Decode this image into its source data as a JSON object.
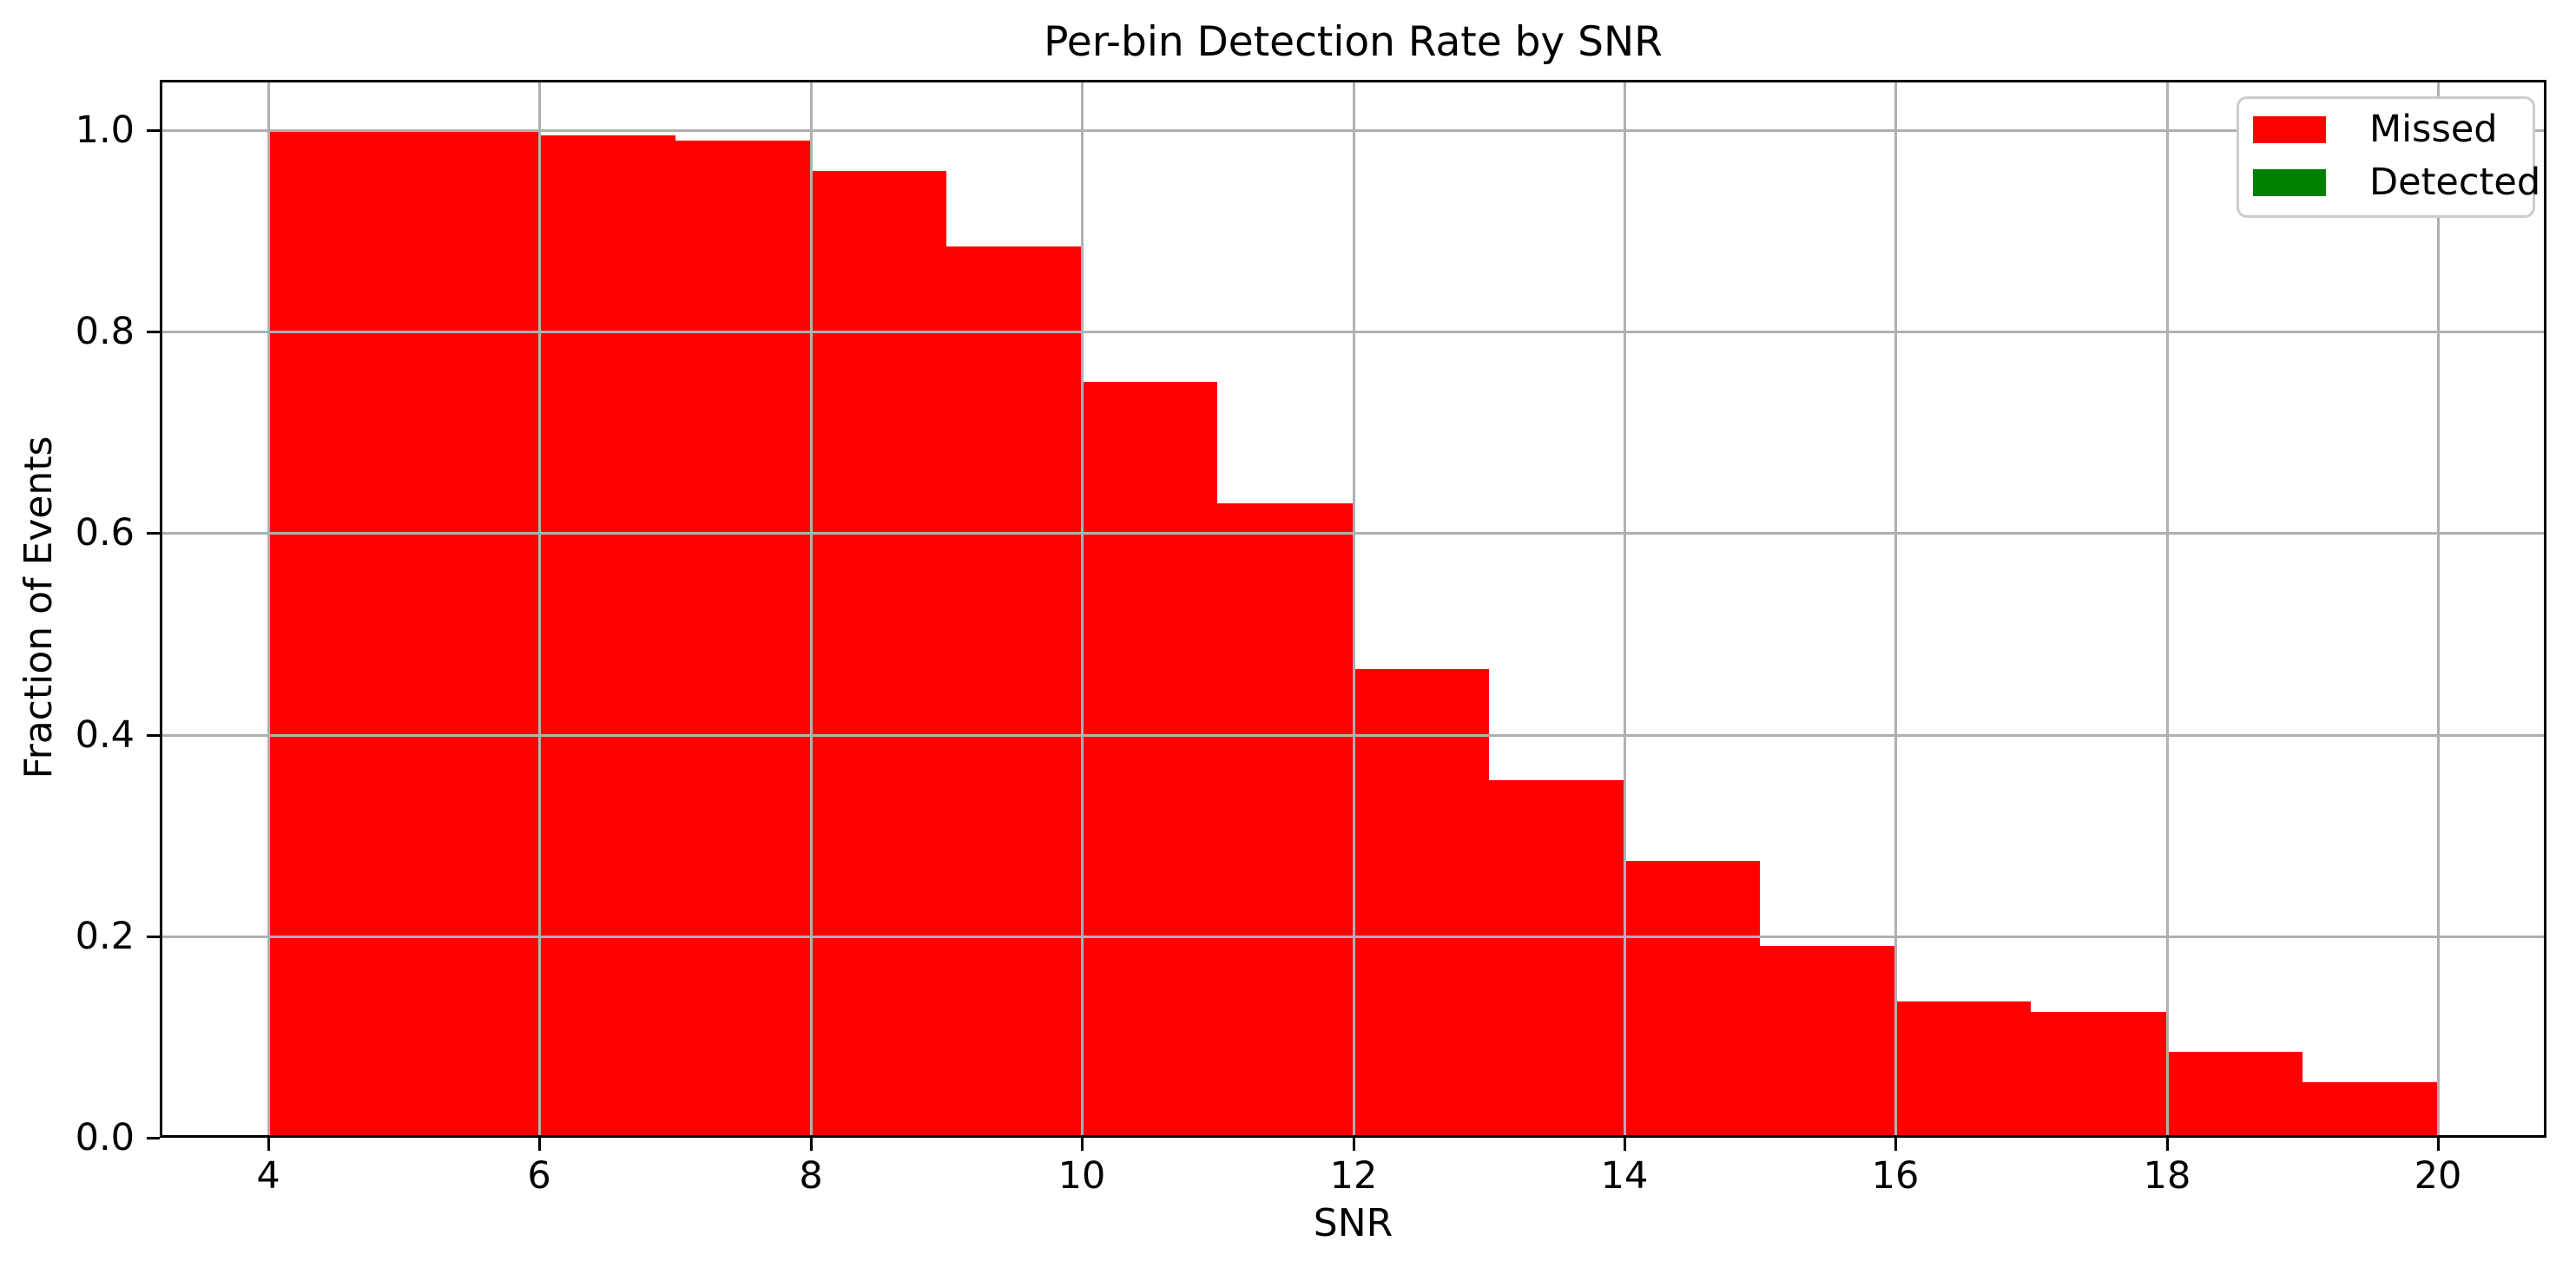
{
  "figure": {
    "background": "#ffffff"
  },
  "chart_data": {
    "type": "bar",
    "subtype": "stacked_histogram",
    "title": "Per-bin Detection Rate by SNR",
    "xlabel": "SNR",
    "ylabel": "Fraction of Events",
    "xlim": [
      3.2,
      20.8
    ],
    "ylim": [
      0,
      1.05
    ],
    "grid": true,
    "grid_above_bars": true,
    "legend_position": "upper right",
    "bin_edges": [
      4,
      5,
      6,
      7,
      8,
      9,
      10,
      11,
      12,
      13,
      14,
      15,
      16,
      17,
      18,
      19,
      20
    ],
    "x_ticks": [
      4,
      6,
      8,
      10,
      12,
      14,
      16,
      18,
      20
    ],
    "x_tick_labels": [
      "4",
      "6",
      "8",
      "10",
      "12",
      "14",
      "16",
      "18",
      "20"
    ],
    "y_ticks": [
      0.0,
      0.2,
      0.4,
      0.6,
      0.8,
      1.0
    ],
    "y_tick_labels": [
      "0.0",
      "0.2",
      "0.4",
      "0.6",
      "0.8",
      "1.0"
    ],
    "series": [
      {
        "name": "Missed",
        "color": "#ff0000",
        "values": [
          1.0,
          1.0,
          0.995,
          0.99,
          0.96,
          0.885,
          0.75,
          0.63,
          0.465,
          0.355,
          0.275,
          0.19,
          0.135,
          0.125,
          0.085,
          0.055
        ]
      },
      {
        "name": "Detected",
        "color": "#008000",
        "values": [
          0,
          0,
          0,
          0,
          0,
          0,
          0,
          0,
          0,
          0,
          0,
          0,
          0,
          0,
          0,
          0
        ]
      }
    ]
  },
  "colors": {
    "grid": "#b0b0b0",
    "axis": "#000000",
    "text": "#000000",
    "legend_border": "#cccccc",
    "legend_bg": "#ffffff"
  }
}
